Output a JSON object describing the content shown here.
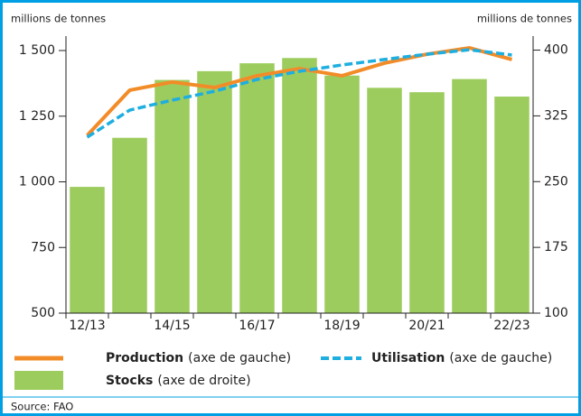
{
  "chart_data": {
    "type": "bar_line",
    "y_label": "millions de tonnes",
    "y2_label": "millions de tonnes",
    "categories": [
      "12/13",
      null,
      "14/15",
      null,
      "16/17",
      null,
      "18/19",
      null,
      "20/21",
      null,
      "22/23"
    ],
    "series": [
      {
        "name": "Stocks",
        "legend_note": "(axe de droite)",
        "type": "bar",
        "axis": "y2",
        "color": "#9dcc5e",
        "values": [
          244,
          300,
          366,
          376,
          385,
          391,
          371,
          357,
          352,
          367,
          347
        ]
      },
      {
        "name": "Production",
        "legend_note": "(axe de gauche)",
        "type": "line",
        "color": "#f28c28",
        "values": [
          1177,
          1349,
          1380,
          1359,
          1404,
          1431,
          1404,
          1452,
          1486,
          1510,
          1466
        ]
      },
      {
        "name": "Utilisation",
        "legend_note": "(axe de gauche)",
        "type": "line",
        "dashed": true,
        "color": "#1eaee0",
        "values": [
          1170,
          1273,
          1311,
          1345,
          1390,
          1421,
          1445,
          1466,
          1486,
          1503,
          1483
        ]
      }
    ],
    "ylim": [
      500,
      1555
    ],
    "yticks": [
      {
        "value": 500,
        "label": "500"
      },
      {
        "value": 750,
        "label": "750"
      },
      {
        "value": 1000,
        "label": "1 000"
      },
      {
        "value": 1250,
        "label": "1 250"
      },
      {
        "value": 1500,
        "label": "1 500"
      }
    ],
    "y2lim": [
      100,
      416
    ],
    "y2ticks": [
      100,
      175,
      250,
      325,
      400
    ],
    "source": "Source: FAO"
  }
}
